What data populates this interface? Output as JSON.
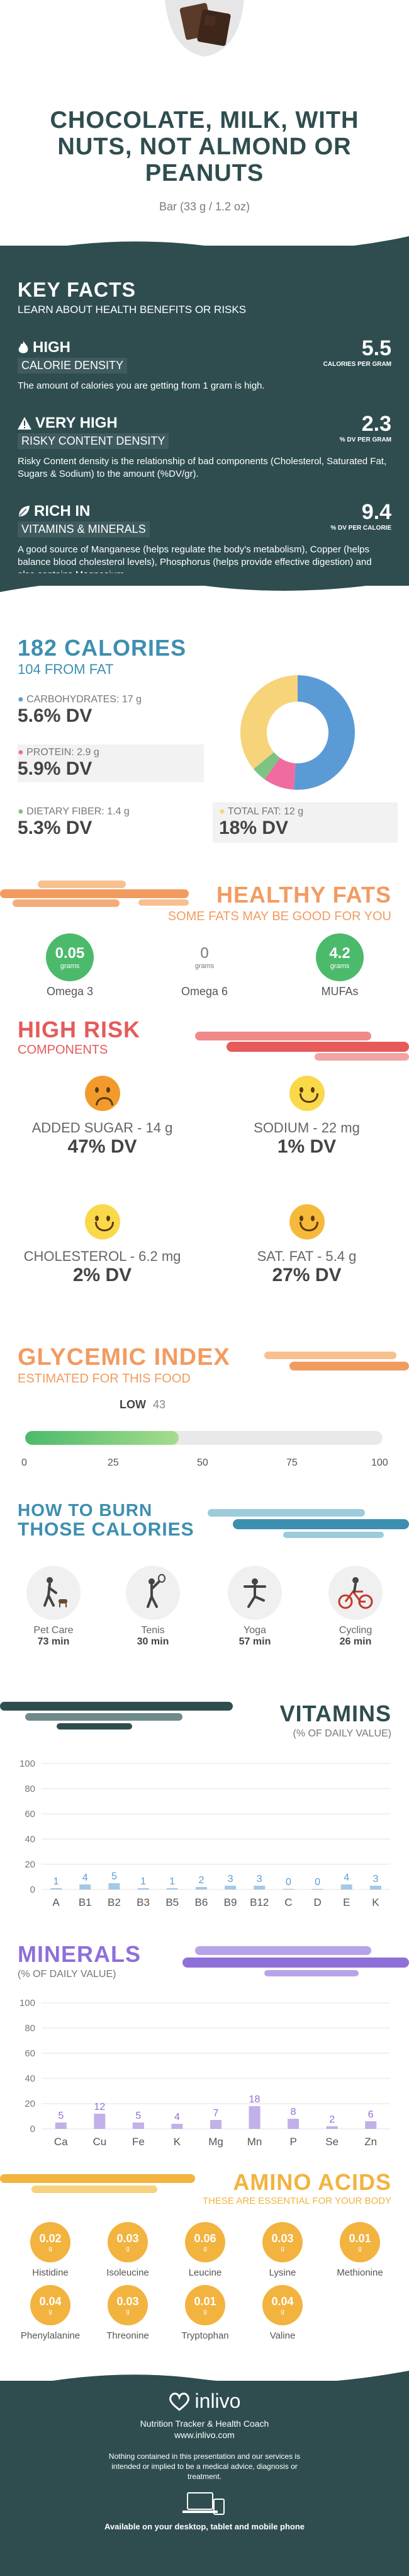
{
  "header": {
    "title_lines": [
      "CHOCOLATE, MILK, WITH",
      "NUTS, NOT ALMOND OR",
      "PEANUTS"
    ],
    "serving": "Bar (33 g / 1.2 oz)"
  },
  "key_facts": {
    "title": "KEY FACTS",
    "subtitle": "LEARN ABOUT HEALTH BENEFITS OR RISKS",
    "items": [
      {
        "level": "HIGH",
        "label": "CALORIE DENSITY",
        "value": "5.5",
        "unit": "CALORIES PER GRAM",
        "desc": "The amount of calories you are getting from 1 gram is high."
      },
      {
        "level": "VERY HIGH",
        "label": "RISKY CONTENT DENSITY",
        "value": "2.3",
        "unit": "% DV PER GRAM",
        "desc": "Risky Content density is the relationship of bad components (Cholesterol, Saturated Fat, Sugars & Sodium) to the amount (%DV/gr)."
      },
      {
        "level": "RICH IN",
        "label": "VITAMINS & MINERALS",
        "value": "9.4",
        "unit": "% DV PER CALORIE",
        "desc": "A good source of Manganese (helps regulate the body's metabolism), Copper (helps balance blood cholesterol levels), Phosphorus (helps provide effective digestion) and also contains Magnesium."
      }
    ]
  },
  "calories": {
    "title": "182 CALORIES",
    "subtitle": "104 FROM FAT",
    "macros": [
      {
        "label": "CARBOHYDRATES: 17 g",
        "dv": "5.6% DV",
        "color": "#5b9bd5"
      },
      {
        "label": "PROTEIN: 2.9 g",
        "dv": "5.9% DV",
        "color": "#f06ba0"
      },
      {
        "label": "DIETARY FIBER: 1.4 g",
        "dv": "5.3% DV",
        "color": "#7dc383"
      },
      {
        "label": "TOTAL FAT: 12 g",
        "dv": "18% DV",
        "color": "#f7d37a"
      }
    ],
    "donut": [
      {
        "name": "carbohydrates",
        "value": 17,
        "color": "#5b9bd5"
      },
      {
        "name": "protein",
        "value": 2.9,
        "color": "#f06ba0"
      },
      {
        "name": "fiber",
        "value": 1.4,
        "color": "#7dc383"
      },
      {
        "name": "fat",
        "value": 12,
        "color": "#f7d37a"
      }
    ]
  },
  "healthy_fats": {
    "title": "HEALTHY FATS",
    "subtitle": "SOME FATS MAY BE GOOD FOR YOU",
    "items": [
      {
        "value": "0.05",
        "unit": "grams",
        "label": "Omega 3",
        "color": "#4cba6b"
      },
      {
        "value": "0",
        "unit": "grams",
        "label": "Omega 6",
        "color": "#ffffff"
      },
      {
        "value": "4.2",
        "unit": "grams",
        "label": "MUFAs",
        "color": "#4cba6b"
      }
    ]
  },
  "high_risk": {
    "title": "HIGH RISK",
    "subtitle": "COMPONENTS",
    "items": [
      {
        "label": "ADDED SUGAR - 14 g",
        "dv": "47% DV",
        "mood": "sad",
        "color": "#f29b2c"
      },
      {
        "label": "SODIUM - 22 mg",
        "dv": "1% DV",
        "mood": "happy",
        "color": "#f9d84a"
      },
      {
        "label": "CHOLESTEROL - 6.2 mg",
        "dv": "2% DV",
        "mood": "happy",
        "color": "#f9d84a"
      },
      {
        "label": "SAT. FAT - 5.4 g",
        "dv": "27% DV",
        "mood": "happy",
        "color": "#f7b93a"
      }
    ]
  },
  "glycemic": {
    "title": "GLYCEMIC INDEX",
    "subtitle": "ESTIMATED FOR THIS FOOD",
    "level": "LOW",
    "value": 43,
    "value_label": "43",
    "ticks": [
      "0",
      "25",
      "50",
      "75",
      "100"
    ]
  },
  "burn": {
    "title_line1": "HOW TO BURN",
    "title_line2": "THOSE CALORIES",
    "items": [
      {
        "label": "Pet Care",
        "time": "73 min",
        "icon": "dog-walking-icon"
      },
      {
        "label": "Tenis",
        "time": "30 min",
        "icon": "tennis-icon"
      },
      {
        "label": "Yoga",
        "time": "57 min",
        "icon": "yoga-icon"
      },
      {
        "label": "Cycling",
        "time": "26 min",
        "icon": "cycling-icon"
      }
    ]
  },
  "vitamins": {
    "title": "VITAMINS",
    "subtitle": "(% OF DAILY VALUE)",
    "chart_data": {
      "type": "bar",
      "categories": [
        "A",
        "B1",
        "B2",
        "B3",
        "B5",
        "B6",
        "B9",
        "B12",
        "C",
        "D",
        "E",
        "K"
      ],
      "values": [
        1,
        4,
        5,
        1,
        1,
        2,
        3,
        3,
        0,
        0,
        4,
        3
      ],
      "ylim": [
        0,
        100
      ],
      "yticks": [
        "0",
        "20",
        "40",
        "60",
        "80",
        "100"
      ],
      "color": "#5b9bd5"
    }
  },
  "minerals": {
    "title": "MINERALS",
    "subtitle": "(% OF DAILY VALUE)",
    "chart_data": {
      "type": "bar",
      "categories": [
        "Ca",
        "Cu",
        "Fe",
        "K",
        "Mg",
        "Mn",
        "P",
        "Se",
        "Zn"
      ],
      "values": [
        5,
        12,
        5,
        4,
        7,
        18,
        8,
        2,
        6
      ],
      "ylim": [
        0,
        100
      ],
      "yticks": [
        "0",
        "20",
        "40",
        "60",
        "80",
        "100"
      ],
      "color": "#8f6fd8"
    }
  },
  "amino": {
    "title": "AMINO ACIDS",
    "subtitle": "THESE ARE ESSENTIAL FOR YOUR BODY",
    "unit": "g",
    "items": [
      {
        "value": "0.02",
        "label": "Histidine"
      },
      {
        "value": "0.03",
        "label": "Isoleucine"
      },
      {
        "value": "0.06",
        "label": "Leucine"
      },
      {
        "value": "0.03",
        "label": "Lysine"
      },
      {
        "value": "0.01",
        "label": "Methionine"
      },
      {
        "value": "0.04",
        "label": "Phenylalanine"
      },
      {
        "value": "0.03",
        "label": "Threonine"
      },
      {
        "value": "0.01",
        "label": "Tryptophan"
      },
      {
        "value": "0.04",
        "label": "Valine"
      }
    ]
  },
  "footer": {
    "brand": "inlivo",
    "tagline": "Nutrition Tracker & Health Coach",
    "url": "www.inlivo.com",
    "disclaimer": "Nothing contained in this presentation and our services is intended or implied to be a medical advice, diagnosis or treatment.",
    "available": "Available on your desktop, tablet and mobile phone"
  },
  "colors": {
    "dark": "#2f4d4f",
    "accent_blue": "#3d8fb0",
    "orange": "#f29b61",
    "red": "#e65a5a",
    "purple": "#8f6fd8",
    "green": "#4cba6b",
    "amino": "#f2b33f"
  }
}
